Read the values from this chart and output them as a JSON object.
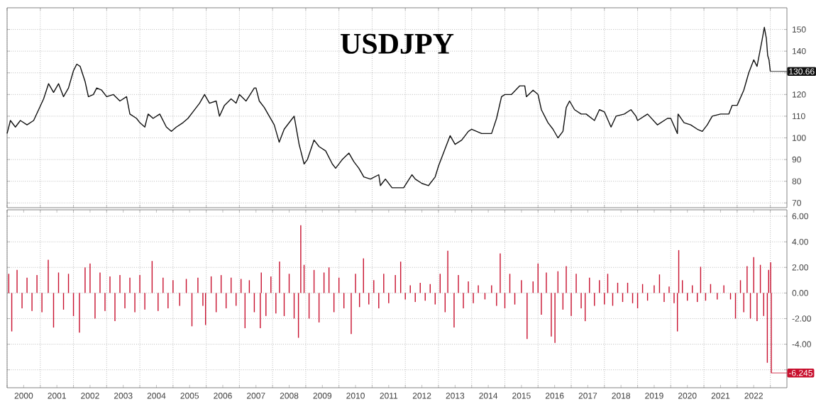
{
  "chart_data": [
    {
      "type": "line",
      "title": "USDJPY",
      "xlim": [
        2000,
        2023.5
      ],
      "ylim": [
        67.8,
        160
      ],
      "xticks": [
        {
          "value": 2000,
          "label": null
        },
        {
          "value": 2001,
          "label": null
        },
        {
          "value": 2002,
          "label": null
        },
        {
          "value": 2003,
          "label": null
        },
        {
          "value": 2004,
          "label": null
        },
        {
          "value": 2005,
          "label": null
        },
        {
          "value": 2006,
          "label": null
        },
        {
          "value": 2007,
          "label": null
        },
        {
          "value": 2008,
          "label": null
        },
        {
          "value": 2009,
          "label": null
        },
        {
          "value": 2010,
          "label": null
        },
        {
          "value": 2011,
          "label": null
        },
        {
          "value": 2012,
          "label": null
        },
        {
          "value": 2013,
          "label": null
        },
        {
          "value": 2014,
          "label": null
        },
        {
          "value": 2015,
          "label": null
        },
        {
          "value": 2016,
          "label": null
        },
        {
          "value": 2017,
          "label": null
        },
        {
          "value": 2018,
          "label": null
        },
        {
          "value": 2019,
          "label": null
        },
        {
          "value": 2020,
          "label": null
        },
        {
          "value": 2021,
          "label": null
        },
        {
          "value": 2022,
          "label": null
        },
        {
          "value": 2023,
          "label": null
        }
      ],
      "yticks": [
        70,
        80,
        90,
        100,
        110,
        120,
        {
          "value": 130,
          "label": null
        },
        140,
        150
      ],
      "tick_labels": "y",
      "grid": true,
      "x": [
        2000.0,
        2000.1,
        2000.25,
        2000.4,
        2000.6,
        2000.8,
        2000.95,
        2001.1,
        2001.25,
        2001.4,
        2001.55,
        2001.7,
        2001.85,
        2002.0,
        2002.1,
        2002.2,
        2002.35,
        2002.45,
        2002.6,
        2002.7,
        2002.85,
        2003.0,
        2003.2,
        2003.4,
        2003.6,
        2003.7,
        2003.9,
        2004.0,
        2004.15,
        2004.25,
        2004.4,
        2004.6,
        2004.8,
        2004.95,
        2005.1,
        2005.3,
        2005.45,
        2005.6,
        2005.8,
        2005.95,
        2006.1,
        2006.3,
        2006.4,
        2006.55,
        2006.75,
        2006.9,
        2007.0,
        2007.2,
        2007.45,
        2007.5,
        2007.6,
        2007.75,
        2007.9,
        2008.05,
        2008.2,
        2008.35,
        2008.55,
        2008.65,
        2008.8,
        2008.95,
        2009.05,
        2009.25,
        2009.4,
        2009.6,
        2009.8,
        2009.9,
        2010.1,
        2010.3,
        2010.45,
        2010.6,
        2010.75,
        2010.95,
        2011.2,
        2011.25,
        2011.4,
        2011.6,
        2011.8,
        2011.95,
        2012.2,
        2012.3,
        2012.5,
        2012.7,
        2012.9,
        2013.0,
        2013.2,
        2013.35,
        2013.5,
        2013.7,
        2013.9,
        2014.0,
        2014.3,
        2014.6,
        2014.75,
        2014.9,
        2015.0,
        2015.2,
        2015.45,
        2015.6,
        2015.65,
        2015.85,
        2016.0,
        2016.1,
        2016.3,
        2016.45,
        2016.6,
        2016.75,
        2016.85,
        2016.95,
        2017.1,
        2017.3,
        2017.45,
        2017.7,
        2017.85,
        2018.0,
        2018.2,
        2018.35,
        2018.6,
        2018.8,
        2018.95,
        2019.0,
        2019.3,
        2019.6,
        2019.9,
        2020.0,
        2020.2,
        2020.22,
        2020.4,
        2020.6,
        2020.8,
        2020.95,
        2021.1,
        2021.25,
        2021.5,
        2021.75,
        2021.85,
        2022.0,
        2022.2,
        2022.35,
        2022.5,
        2022.6,
        2022.75,
        2022.82,
        2022.88,
        2022.92,
        2022.96,
        2023.0
      ],
      "series": [
        {
          "color": "#111111",
          "values": [
            102,
            108,
            105,
            108,
            106,
            108,
            113,
            118,
            125,
            121,
            125,
            119,
            123,
            131,
            134,
            133,
            126,
            119,
            120,
            123,
            122,
            119,
            120,
            117,
            119,
            111,
            109,
            107,
            105,
            111,
            109,
            111,
            105,
            103,
            105,
            107,
            109,
            112,
            116,
            120,
            116,
            117,
            110,
            115,
            118,
            116,
            120,
            117,
            123,
            123,
            117,
            114,
            110,
            106,
            98,
            104,
            108,
            110,
            97,
            88,
            90,
            99,
            96,
            94,
            88,
            86,
            90,
            93,
            89,
            86,
            82,
            81,
            83,
            78,
            81,
            77,
            77,
            77,
            83,
            81,
            79,
            78,
            82,
            87,
            95,
            101,
            97,
            99,
            103,
            104,
            102,
            102,
            109,
            119,
            120,
            120,
            124,
            124,
            119,
            122,
            120,
            113,
            107,
            104,
            100,
            103,
            114,
            117,
            113,
            111,
            111,
            108,
            113,
            112,
            105,
            110,
            111,
            113,
            110,
            108,
            111,
            106,
            109,
            109,
            102,
            111,
            107,
            106,
            104,
            103,
            106,
            110,
            111,
            111,
            115,
            115,
            122,
            130,
            136,
            133,
            145,
            151,
            146,
            138,
            136,
            130.66
          ]
        }
      ],
      "annotations": [
        {
          "text": "130.66",
          "x": 2023.0,
          "y": 130.66
        }
      ]
    },
    {
      "type": "bar",
      "xlim": [
        2000,
        2023.5
      ],
      "ylim": [
        -7.4,
        6.5
      ],
      "xticks": [
        {
          "value": 2000,
          "label": null
        },
        {
          "value": 2000.5,
          "label": "2000"
        },
        {
          "value": 2001,
          "label": null
        },
        {
          "value": 2001.5,
          "label": "2001"
        },
        {
          "value": 2002,
          "label": null
        },
        {
          "value": 2002.5,
          "label": "2002"
        },
        {
          "value": 2003,
          "label": null
        },
        {
          "value": 2003.5,
          "label": "2003"
        },
        {
          "value": 2004,
          "label": null
        },
        {
          "value": 2004.5,
          "label": "2004"
        },
        {
          "value": 2005,
          "label": null
        },
        {
          "value": 2005.5,
          "label": "2005"
        },
        {
          "value": 2006,
          "label": null
        },
        {
          "value": 2006.5,
          "label": "2006"
        },
        {
          "value": 2007,
          "label": null
        },
        {
          "value": 2007.5,
          "label": "2007"
        },
        {
          "value": 2008,
          "label": null
        },
        {
          "value": 2008.5,
          "label": "2008"
        },
        {
          "value": 2009,
          "label": null
        },
        {
          "value": 2009.5,
          "label": "2009"
        },
        {
          "value": 2010,
          "label": null
        },
        {
          "value": 2010.5,
          "label": "2010"
        },
        {
          "value": 2011,
          "label": null
        },
        {
          "value": 2011.5,
          "label": "2011"
        },
        {
          "value": 2012,
          "label": null
        },
        {
          "value": 2012.5,
          "label": "2012"
        },
        {
          "value": 2013,
          "label": null
        },
        {
          "value": 2013.5,
          "label": "2013"
        },
        {
          "value": 2014,
          "label": null
        },
        {
          "value": 2014.5,
          "label": "2014"
        },
        {
          "value": 2015,
          "label": null
        },
        {
          "value": 2015.5,
          "label": "2015"
        },
        {
          "value": 2016,
          "label": null
        },
        {
          "value": 2016.5,
          "label": "2016"
        },
        {
          "value": 2017,
          "label": null
        },
        {
          "value": 2017.5,
          "label": "2017"
        },
        {
          "value": 2018,
          "label": null
        },
        {
          "value": 2018.5,
          "label": "2018"
        },
        {
          "value": 2019,
          "label": null
        },
        {
          "value": 2019.5,
          "label": "2019"
        },
        {
          "value": 2020,
          "label": null
        },
        {
          "value": 2020.5,
          "label": "2020"
        },
        {
          "value": 2021,
          "label": null
        },
        {
          "value": 2021.5,
          "label": "2021"
        },
        {
          "value": 2022,
          "label": null
        },
        {
          "value": 2022.5,
          "label": "2022"
        },
        {
          "value": 2023,
          "label": null
        }
      ],
      "yticks": [
        {
          "value": 6,
          "label": "6.00"
        },
        {
          "value": 4,
          "label": "4.00"
        },
        {
          "value": 2,
          "label": "2.00"
        },
        {
          "value": 0,
          "label": "0.00"
        },
        {
          "value": -2,
          "label": "-2.00"
        },
        {
          "value": -4,
          "label": "-4.00"
        },
        {
          "value": -6,
          "label": null
        }
      ],
      "grid": true,
      "x": [
        2000.05,
        2000.14,
        2000.3,
        2000.45,
        2000.6,
        2000.75,
        2000.9,
        2001.05,
        2001.24,
        2001.4,
        2001.55,
        2001.7,
        2001.85,
        2002.0,
        2002.18,
        2002.35,
        2002.5,
        2002.65,
        2002.8,
        2002.95,
        2003.1,
        2003.25,
        2003.4,
        2003.55,
        2003.7,
        2003.85,
        2004.0,
        2004.15,
        2004.37,
        2004.55,
        2004.7,
        2004.85,
        2005.0,
        2005.2,
        2005.4,
        2005.57,
        2005.75,
        2005.9,
        2005.98,
        2006.15,
        2006.3,
        2006.45,
        2006.6,
        2006.75,
        2006.9,
        2007.05,
        2007.17,
        2007.3,
        2007.45,
        2007.63,
        2007.66,
        2007.8,
        2007.95,
        2008.1,
        2008.21,
        2008.35,
        2008.5,
        2008.65,
        2008.78,
        2008.85,
        2008.95,
        2009.1,
        2009.25,
        2009.4,
        2009.55,
        2009.7,
        2009.85,
        2010.0,
        2010.15,
        2010.37,
        2010.5,
        2010.62,
        2010.74,
        2010.9,
        2011.05,
        2011.2,
        2011.35,
        2011.5,
        2011.7,
        2011.86,
        2012.0,
        2012.15,
        2012.3,
        2012.45,
        2012.6,
        2012.75,
        2012.9,
        2013.05,
        2013.2,
        2013.28,
        2013.47,
        2013.6,
        2013.75,
        2013.9,
        2014.05,
        2014.2,
        2014.4,
        2014.6,
        2014.75,
        2014.86,
        2015.0,
        2015.15,
        2015.3,
        2015.5,
        2015.67,
        2015.85,
        2016.0,
        2016.1,
        2016.25,
        2016.4,
        2016.51,
        2016.6,
        2016.75,
        2016.85,
        2017.0,
        2017.15,
        2017.3,
        2017.42,
        2017.55,
        2017.7,
        2017.85,
        2018.0,
        2018.1,
        2018.25,
        2018.4,
        2018.55,
        2018.7,
        2018.85,
        2019.0,
        2019.15,
        2019.3,
        2019.5,
        2019.66,
        2019.8,
        2019.95,
        2020.1,
        2020.2,
        2020.24,
        2020.35,
        2020.5,
        2020.65,
        2020.8,
        2020.9,
        2021.05,
        2021.2,
        2021.4,
        2021.6,
        2021.8,
        2021.95,
        2022.1,
        2022.2,
        2022.3,
        2022.4,
        2022.5,
        2022.6,
        2022.7,
        2022.8,
        2022.91,
        2022.95,
        2023.01,
        2023.03
      ],
      "series": [
        {
          "color": "#c8102e",
          "values": [
            1.5,
            -3.0,
            1.8,
            -1.2,
            1.2,
            -1.4,
            1.4,
            -1.5,
            2.6,
            -2.7,
            1.6,
            -1.3,
            1.5,
            -1.8,
            -3.1,
            2.0,
            2.3,
            -2.0,
            1.6,
            -1.4,
            1.3,
            -2.2,
            1.4,
            -1.2,
            1.2,
            -1.5,
            1.4,
            -1.3,
            2.5,
            -1.4,
            1.2,
            -1.2,
            1.0,
            -1.0,
            1.1,
            -2.6,
            1.2,
            -1.0,
            -2.5,
            1.3,
            -1.5,
            1.4,
            -1.2,
            1.2,
            -1.0,
            1.1,
            -2.75,
            1.0,
            -1.5,
            -2.75,
            1.6,
            -1.8,
            1.3,
            -1.6,
            2.45,
            -1.8,
            1.5,
            -2.0,
            -3.5,
            5.3,
            2.2,
            -2.0,
            1.8,
            -2.3,
            1.6,
            2.0,
            -1.5,
            1.2,
            -1.2,
            -3.2,
            1.5,
            -1.1,
            2.7,
            -0.9,
            1.0,
            -1.2,
            1.5,
            -0.8,
            1.4,
            2.45,
            -0.5,
            0.6,
            -0.7,
            0.8,
            -0.6,
            0.7,
            -0.9,
            1.5,
            -1.5,
            3.3,
            -2.7,
            1.4,
            -1.2,
            0.9,
            -0.8,
            0.6,
            -0.5,
            0.6,
            -1.0,
            3.1,
            -1.2,
            1.5,
            -0.9,
            1.0,
            -3.6,
            0.9,
            2.3,
            -1.7,
            1.6,
            -3.4,
            -3.9,
            1.7,
            -1.3,
            2.1,
            -1.8,
            1.5,
            -1.2,
            -2.2,
            1.2,
            -1.0,
            1.0,
            -0.9,
            1.5,
            -1.0,
            0.8,
            -0.7,
            0.8,
            -0.8,
            -1.2,
            0.7,
            -0.6,
            0.6,
            1.45,
            -0.7,
            0.5,
            -0.8,
            -3.0,
            3.35,
            1.0,
            -0.6,
            0.6,
            -0.7,
            2.05,
            -0.6,
            0.7,
            -0.5,
            0.6,
            -0.5,
            -2.0,
            1.0,
            -1.5,
            2.1,
            -2.0,
            2.8,
            -2.2,
            2.2,
            -1.8,
            -5.45,
            1.8,
            2.4,
            -6.245
          ]
        }
      ],
      "annotations": [
        {
          "text": "-6.245",
          "x": 2023.03,
          "y": -6.245
        }
      ]
    }
  ]
}
